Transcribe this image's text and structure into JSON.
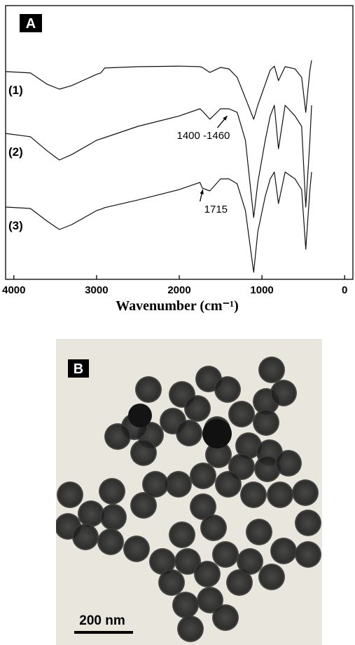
{
  "chart_data": {
    "type": "line",
    "panel_label": "A",
    "x_label": "Wavenumber (cm⁻¹)",
    "x": [
      4100,
      3800,
      3600,
      3450,
      3300,
      3000,
      2950,
      2900,
      2500,
      2000,
      1750,
      1720,
      1630,
      1500,
      1400,
      1300,
      1200,
      1100,
      1050,
      960,
      900,
      850,
      800,
      720,
      600,
      520,
      470,
      420,
      400
    ],
    "series": [
      {
        "name": "(1)",
        "color": "#111111",
        "values": [
          75.9,
          75.4,
          71.3,
          69.5,
          70.8,
          74.9,
          75.4,
          77.2,
          77.7,
          77.9,
          77.7,
          77.4,
          75.6,
          77.4,
          76.9,
          73.8,
          66.2,
          58.5,
          63.6,
          71.3,
          76.4,
          77.9,
          72.6,
          77.7,
          76.9,
          73.8,
          61.0,
          76.4,
          80.0
        ]
      },
      {
        "name": "(2)",
        "color": "#111111",
        "values": [
          53.3,
          52.1,
          47.0,
          43.6,
          45.6,
          50.8,
          51.3,
          51.8,
          55.9,
          59.7,
          62.3,
          61.5,
          58.5,
          62.3,
          62.3,
          61.0,
          50.8,
          22.6,
          35.4,
          50.8,
          59.7,
          63.6,
          47.7,
          63.6,
          59.7,
          55.9,
          26.4,
          50.8,
          63.6
        ]
      },
      {
        "name": "(3)",
        "color": "#111111",
        "values": [
          26.4,
          25.9,
          21.3,
          18.2,
          20.0,
          25.1,
          25.6,
          26.2,
          29.0,
          32.8,
          35.4,
          33.3,
          32.3,
          36.7,
          36.7,
          34.9,
          25.1,
          2.6,
          17.4,
          30.3,
          36.7,
          39.2,
          27.7,
          39.2,
          36.7,
          32.8,
          11.0,
          32.8,
          39.2
        ]
      }
    ],
    "annotations": [
      {
        "text": "1400 -1460",
        "x": 1420,
        "y": 60.5
      },
      {
        "text": "1715",
        "x": 1715,
        "y": 33.6
      }
    ],
    "xlim": [
      4100,
      -100
    ],
    "xticks": [
      4000,
      3000,
      2000,
      1000,
      0
    ],
    "ylim": [
      0,
      100
    ]
  },
  "panel_b": {
    "label": "B",
    "scale_bar": "200 nm"
  }
}
